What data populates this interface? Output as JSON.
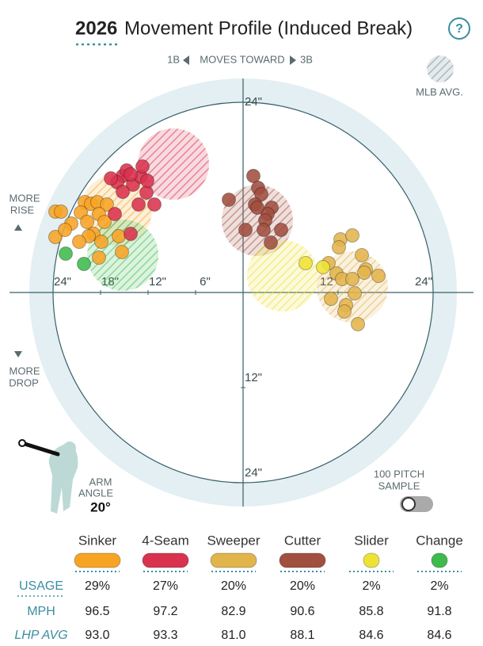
{
  "header": {
    "year": "2026",
    "title": "Movement Profile (Induced Break)",
    "help": "?"
  },
  "chart_data": {
    "type": "movement",
    "direction": {
      "left": "1B",
      "center": "MOVES TOWARD",
      "right": "3B"
    },
    "legend_label": "MLB AVG.",
    "rise_label": [
      "MORE",
      "RISE"
    ],
    "drop_label": [
      "MORE",
      "DROP"
    ],
    "xlim": [
      -27,
      27
    ],
    "ylim": [
      -27,
      27
    ],
    "rings": [
      6,
      12,
      18,
      24
    ],
    "xticks": [
      {
        "value": -24,
        "label": "24\""
      },
      {
        "value": -18,
        "label": "18\""
      },
      {
        "value": -12,
        "label": "12\""
      },
      {
        "value": -6,
        "label": "6\""
      },
      {
        "value": 12,
        "label": "12\""
      },
      {
        "value": 24,
        "label": "24\""
      }
    ],
    "yticks": [
      {
        "value": 24,
        "label": "24\""
      },
      {
        "value": -12,
        "label": "12\""
      },
      {
        "value": -24,
        "label": "24\""
      }
    ],
    "series": [
      {
        "name": "Sinker",
        "color": "#f7a425",
        "mlb_avg": [
          -16,
          10.4
        ],
        "x": [
          -23.7,
          -23.0,
          -20.0,
          -19.2,
          -18.4,
          -17.2,
          -20.5,
          -18.2,
          -21.7,
          -19.7,
          -17.5,
          -18.9,
          -23.7,
          -19.5,
          -17.9,
          -20.7,
          -18.2,
          -15.3,
          -15.7,
          -22.5
        ],
        "y": [
          10.2,
          10.2,
          11.4,
          11.2,
          11.4,
          11.1,
          10.1,
          9.9,
          8.7,
          8.9,
          8.9,
          7.4,
          7.0,
          7.1,
          6.4,
          6.4,
          4.4,
          5.1,
          7.1,
          7.9
        ]
      },
      {
        "name": "4-Seam",
        "color": "#d9324f",
        "mlb_avg": [
          -8.8,
          16.2
        ],
        "x": [
          -13.9,
          -12.9,
          -15.2,
          -14.7,
          -12.7,
          -15.9,
          -14.2,
          -15.2,
          -12.2,
          -11.2,
          -13.2,
          -16.2,
          -14.2,
          -16.7,
          -12.1
        ],
        "y": [
          13.6,
          14.6,
          14.7,
          15.4,
          15.9,
          13.9,
          14.9,
          12.7,
          12.6,
          11.1,
          11.1,
          9.9,
          7.4,
          14.4,
          14.1
        ]
      },
      {
        "name": "Sweeper",
        "color": "#e2b44c",
        "mlb_avg": [
          13.8,
          0.7
        ],
        "x": [
          12.3,
          13.8,
          12.1,
          15.0,
          15.5,
          17.1,
          10.8,
          11.8,
          12.5,
          15.3,
          14.1,
          11.1,
          13.0,
          12.8,
          14.5,
          13.8
        ],
        "y": [
          6.7,
          7.2,
          5.7,
          4.7,
          2.9,
          2.1,
          3.7,
          2.4,
          1.7,
          2.5,
          -0.1,
          -0.8,
          -1.6,
          -2.4,
          -4.0,
          1.7
        ]
      },
      {
        "name": "Cutter",
        "color": "#a14f3f",
        "mlb_avg": [
          1.8,
          9.1
        ],
        "x": [
          1.3,
          1.9,
          2.3,
          -1.8,
          1.5,
          3.6,
          3.1,
          2.8,
          0.3,
          2.6,
          4.8,
          3.5,
          1.8
        ],
        "y": [
          14.7,
          13.2,
          12.4,
          11.7,
          11.1,
          10.7,
          9.9,
          9.1,
          7.9,
          7.9,
          7.9,
          6.3,
          10.7
        ]
      },
      {
        "name": "Slider",
        "color": "#eee236",
        "mlb_avg": [
          5.0,
          2.1
        ],
        "x": [
          7.9,
          10.1
        ],
        "y": [
          3.7,
          3.2
        ]
      },
      {
        "name": "Change",
        "color": "#3dbb4c",
        "mlb_avg": [
          -15.2,
          4.7
        ],
        "x": [
          -22.4,
          -20.1
        ],
        "y": [
          4.9,
          3.6
        ]
      }
    ]
  },
  "arm": {
    "label": [
      "ARM",
      "ANGLE"
    ],
    "value": "20°"
  },
  "sample": [
    "100 PITCH",
    "SAMPLE"
  ],
  "table": {
    "rows": [
      {
        "label": "USAGE",
        "values": [
          "29%",
          "27%",
          "20%",
          "20%",
          "2%",
          "2%"
        ]
      },
      {
        "label": "MPH",
        "values": [
          "96.5",
          "97.2",
          "82.9",
          "90.6",
          "85.8",
          "91.8"
        ]
      },
      {
        "label": "LHP AVG",
        "values": [
          "93.0",
          "93.3",
          "81.0",
          "88.1",
          "84.6",
          "84.6"
        ]
      }
    ]
  }
}
